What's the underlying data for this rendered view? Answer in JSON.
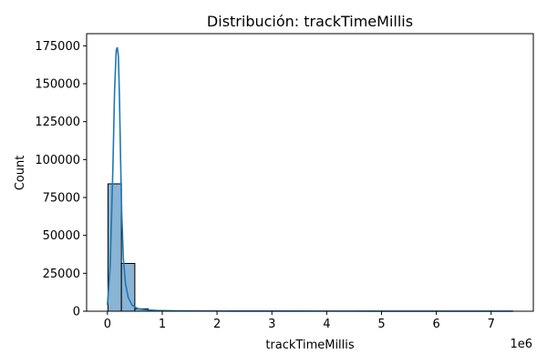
{
  "chart_data": {
    "type": "bar",
    "title": "Distribución: trackTimeMillis",
    "xlabel": "trackTimeMillis",
    "ylabel": "Count",
    "x_offset_text": "1e6",
    "xlim": [
      -380000,
      7770000
    ],
    "ylim": [
      0,
      183000
    ],
    "x_ticks": [
      0,
      1,
      2,
      3,
      4,
      5,
      6,
      7
    ],
    "y_ticks": [
      0,
      25000,
      50000,
      75000,
      100000,
      125000,
      150000,
      175000
    ],
    "y_tick_labels": [
      "0",
      "25000",
      "50000",
      "75000",
      "100000",
      "125000",
      "150000",
      "175000"
    ],
    "bin_width": 245000,
    "bins": [
      {
        "x0": 10000,
        "count": 84000
      },
      {
        "x0": 255000,
        "count": 31500
      },
      {
        "x0": 500000,
        "count": 1600
      },
      {
        "x0": 745000,
        "count": 500
      },
      {
        "x0": 990000,
        "count": 250
      },
      {
        "x0": 1235000,
        "count": 120
      },
      {
        "x0": 1480000,
        "count": 60
      },
      {
        "x0": 1725000,
        "count": 30
      }
    ],
    "kde": {
      "x": [
        0,
        50000,
        100000,
        130000,
        160000,
        180000,
        200000,
        220000,
        240000,
        260000,
        290000,
        330000,
        380000,
        450000,
        550000,
        700000,
        900000,
        1200000,
        2000000,
        3000000,
        4000000,
        5000000,
        6000000,
        7000000,
        7400000
      ],
      "y": [
        4000,
        30000,
        95000,
        145000,
        172000,
        174000,
        168000,
        140000,
        100000,
        65000,
        35000,
        18000,
        9000,
        4000,
        1800,
        900,
        500,
        300,
        150,
        100,
        80,
        60,
        40,
        20,
        10
      ]
    },
    "colors": {
      "bar_fill": "#8ab4d4",
      "bar_edge": "#000000",
      "kde_line": "#1f77b4"
    },
    "grid": false,
    "legend": "none"
  }
}
